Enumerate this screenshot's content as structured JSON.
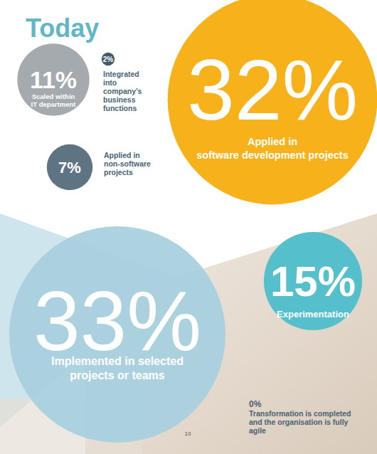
{
  "chart_data": {
    "type": "bubble",
    "title": "Today",
    "categories": [
      "Applied in\nsoftware development projects",
      "Implemented in selected\nprojects or teams",
      "Experimentation",
      "Scaled within\nIT department",
      "Applied in\nnon-software\nprojects",
      "Integrated\ninto\ncompany’s\nbusiness\nfunctions",
      "Transformation is completed\nand the organisation is fully\nagile"
    ],
    "values": [
      32,
      33,
      15,
      11,
      7,
      2,
      0
    ],
    "value_labels": [
      "32%",
      "33%",
      "15%",
      "11%",
      "7%",
      "2%",
      "0%"
    ],
    "data_labels": true,
    "colors": [
      "#f7b21b",
      "#a9d0de",
      "#55bfcb",
      "#a4aaae",
      "#5f7482",
      "#455a69",
      "#4a6272"
    ],
    "annotations": [
      "10"
    ]
  }
}
